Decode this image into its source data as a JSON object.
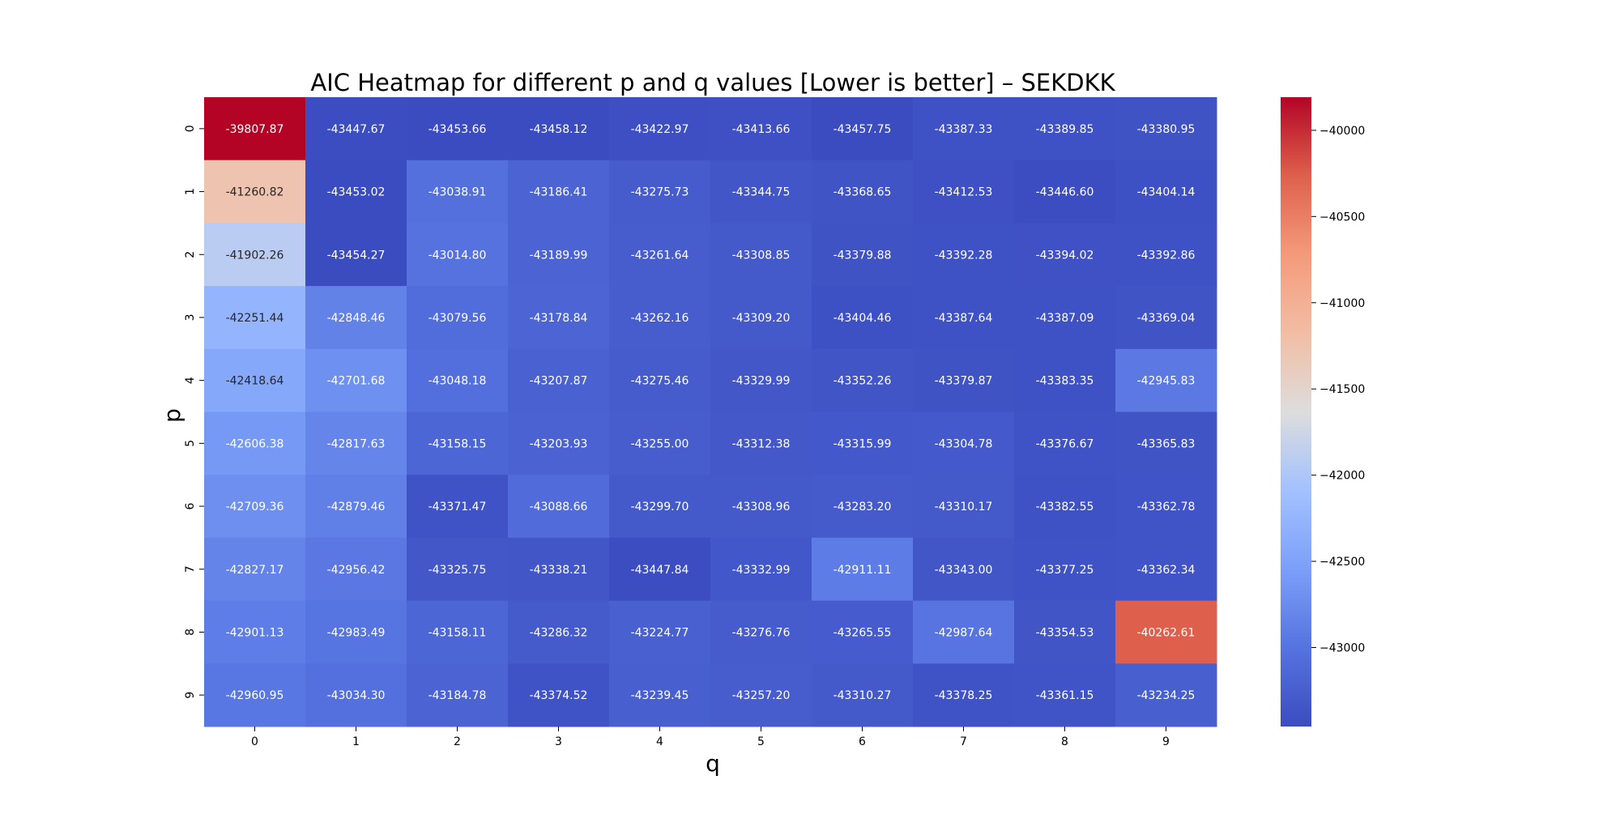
{
  "chart_data": {
    "type": "heatmap",
    "title": "AIC Heatmap for different p and q values [Lower is better] – SEKDKK",
    "xlabel": "q",
    "ylabel": "p",
    "x_categories": [
      "0",
      "1",
      "2",
      "3",
      "4",
      "5",
      "6",
      "7",
      "8",
      "9"
    ],
    "y_categories": [
      "0",
      "1",
      "2",
      "3",
      "4",
      "5",
      "6",
      "7",
      "8",
      "9"
    ],
    "values": [
      [
        -39807.87,
        -43447.67,
        -43453.66,
        -43458.12,
        -43422.97,
        -43413.66,
        -43457.75,
        -43387.33,
        -43389.85,
        -43380.95
      ],
      [
        -41260.82,
        -43453.02,
        -43038.91,
        -43186.41,
        -43275.73,
        -43344.75,
        -43368.65,
        -43412.53,
        -43446.6,
        -43404.14
      ],
      [
        -41902.26,
        -43454.27,
        -43014.8,
        -43189.99,
        -43261.64,
        -43308.85,
        -43379.88,
        -43392.28,
        -43394.02,
        -43392.86
      ],
      [
        -42251.44,
        -42848.46,
        -43079.56,
        -43178.84,
        -43262.16,
        -43309.2,
        -43404.46,
        -43387.64,
        -43387.09,
        -43369.04
      ],
      [
        -42418.64,
        -42701.68,
        -43048.18,
        -43207.87,
        -43275.46,
        -43329.99,
        -43352.26,
        -43379.87,
        -43383.35,
        -42945.83
      ],
      [
        -42606.38,
        -42817.63,
        -43158.15,
        -43203.93,
        -43255.0,
        -43312.38,
        -43315.99,
        -43304.78,
        -43376.67,
        -43365.83
      ],
      [
        -42709.36,
        -42879.46,
        -43371.47,
        -43088.66,
        -43299.7,
        -43308.96,
        -43283.2,
        -43310.17,
        -43382.55,
        -43362.78
      ],
      [
        -42827.17,
        -42956.42,
        -43325.75,
        -43338.21,
        -43447.84,
        -43332.99,
        -42911.11,
        -43343.0,
        -43377.25,
        -43362.34
      ],
      [
        -42901.13,
        -42983.49,
        -43158.11,
        -43286.32,
        -43224.77,
        -43276.76,
        -43265.55,
        -42987.64,
        -43354.53,
        -40262.61
      ],
      [
        -42960.95,
        -43034.3,
        -43184.78,
        -43374.52,
        -43239.45,
        -43257.2,
        -43310.27,
        -43378.25,
        -43361.15,
        -43234.25
      ]
    ],
    "vmin": -43458.12,
    "vmax": -39807.87,
    "colormap": "coolwarm",
    "colorbar_ticks": [
      -40000,
      -40500,
      -41000,
      -41500,
      -42000,
      -42500,
      -43000
    ],
    "colorbar_tick_labels": [
      "−40000",
      "−40500",
      "−41000",
      "−41500",
      "−42000",
      "−42500",
      "−43000"
    ],
    "annotation_format": "2 decimals"
  }
}
